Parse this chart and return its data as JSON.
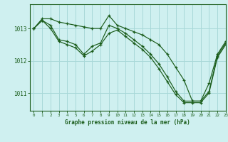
{
  "background_color": "#cff0f0",
  "grid_color": "#a8d8d8",
  "line_color": "#1a5c1a",
  "xlabel": "Graphe pression niveau de la mer (hPa)",
  "xlabel_color": "#1a5c1a",
  "xlim": [
    -0.5,
    23
  ],
  "ylim": [
    1010.45,
    1013.75
  ],
  "yticks": [
    1011,
    1012,
    1013
  ],
  "xticks": [
    0,
    1,
    2,
    3,
    4,
    5,
    6,
    7,
    8,
    9,
    10,
    11,
    12,
    13,
    14,
    15,
    16,
    17,
    18,
    19,
    20,
    21,
    22,
    23
  ],
  "series": [
    {
      "x": [
        0,
        1,
        2,
        3,
        4,
        5,
        6,
        7,
        8,
        9,
        10,
        11,
        12,
        13,
        14,
        15,
        16,
        17,
        18,
        19,
        20,
        21,
        22,
        23
      ],
      "y": [
        1013.0,
        1013.3,
        1013.3,
        1013.2,
        1013.15,
        1013.1,
        1013.05,
        1013.0,
        1013.0,
        1013.4,
        1013.1,
        1013.0,
        1012.9,
        1012.8,
        1012.65,
        1012.5,
        1012.2,
        1011.8,
        1011.4,
        1010.75,
        1010.75,
        1011.3,
        1012.2,
        1012.6
      ]
    },
    {
      "x": [
        0,
        1,
        2,
        3,
        4,
        5,
        6,
        7,
        8,
        9,
        10,
        11,
        12,
        13,
        14,
        15,
        16,
        17,
        18,
        19,
        20,
        21,
        22,
        23
      ],
      "y": [
        1013.0,
        1013.25,
        1013.1,
        1012.65,
        1012.6,
        1012.5,
        1012.2,
        1012.45,
        1012.55,
        1013.1,
        1013.0,
        1012.85,
        1012.65,
        1012.45,
        1012.2,
        1011.9,
        1011.5,
        1011.05,
        1010.75,
        1010.75,
        1010.75,
        1011.05,
        1012.15,
        1012.55
      ]
    },
    {
      "x": [
        0,
        1,
        2,
        3,
        4,
        5,
        6,
        7,
        8,
        9,
        10,
        11,
        12,
        13,
        14,
        15,
        16,
        17,
        18,
        19,
        20,
        21,
        22,
        23
      ],
      "y": [
        1013.0,
        1013.25,
        1013.0,
        1012.6,
        1012.5,
        1012.4,
        1012.15,
        1012.3,
        1012.5,
        1012.85,
        1012.95,
        1012.75,
        1012.55,
        1012.35,
        1012.1,
        1011.75,
        1011.35,
        1010.95,
        1010.7,
        1010.7,
        1010.7,
        1011.0,
        1012.1,
        1012.5
      ]
    }
  ]
}
